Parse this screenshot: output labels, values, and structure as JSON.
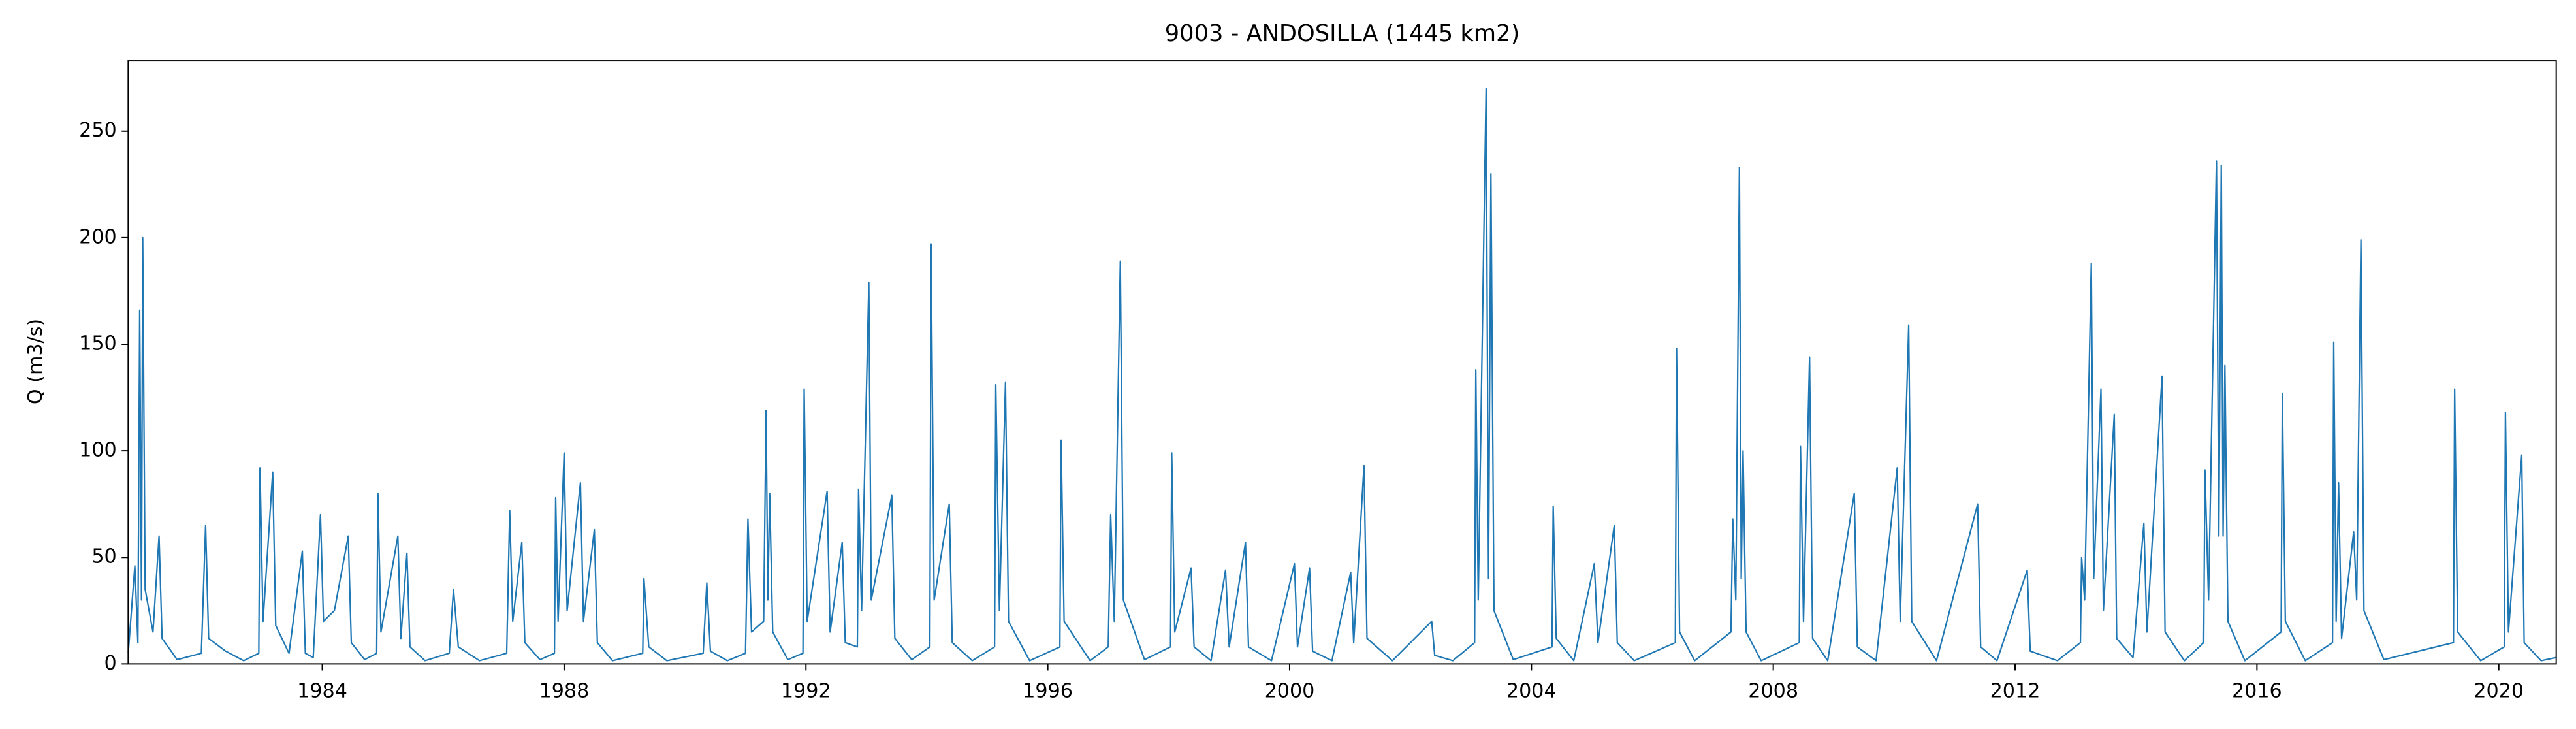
{
  "chart_data": {
    "type": "line",
    "title": "9003 - ANDOSILLA (1445 km2)",
    "y_label": "Q (m3/s)",
    "color": "#1f77b4",
    "xlim": [
      1980.79,
      2020.95
    ],
    "xticks": [
      1984,
      1988,
      1992,
      1996,
      2000,
      2004,
      2008,
      2012,
      2016,
      2020
    ],
    "ylim": [
      0,
      283
    ],
    "yticks": [
      0,
      50,
      100,
      150,
      200,
      250
    ],
    "grid": false,
    "x": [
      1980.79,
      1980.9,
      1980.95,
      1980.98,
      1981.01,
      1981.03,
      1981.07,
      1981.2,
      1981.3,
      1981.35,
      1981.6,
      1982.0,
      1982.07,
      1982.12,
      1982.4,
      1982.7,
      1982.95,
      1982.97,
      1983.02,
      1983.18,
      1983.23,
      1983.45,
      1983.67,
      1983.72,
      1983.85,
      1983.97,
      1984.02,
      1984.2,
      1984.43,
      1984.48,
      1984.7,
      1984.9,
      1984.92,
      1984.97,
      1985.25,
      1985.3,
      1985.4,
      1985.45,
      1985.7,
      1986.1,
      1986.17,
      1986.25,
      1986.6,
      1987.05,
      1987.1,
      1987.15,
      1987.3,
      1987.35,
      1987.6,
      1987.84,
      1987.86,
      1987.9,
      1988.0,
      1988.05,
      1988.27,
      1988.32,
      1988.5,
      1988.55,
      1988.8,
      1989.3,
      1989.32,
      1989.4,
      1989.7,
      1990.3,
      1990.36,
      1990.42,
      1990.7,
      1991.0,
      1991.04,
      1991.1,
      1991.3,
      1991.34,
      1991.37,
      1991.4,
      1991.45,
      1991.7,
      1991.95,
      1991.97,
      1992.02,
      1992.35,
      1992.4,
      1992.6,
      1992.65,
      1992.85,
      1992.87,
      1992.92,
      1993.04,
      1993.08,
      1993.42,
      1993.47,
      1993.75,
      1994.05,
      1994.07,
      1994.12,
      1994.37,
      1994.42,
      1994.75,
      1995.12,
      1995.14,
      1995.2,
      1995.3,
      1995.35,
      1995.7,
      1996.2,
      1996.22,
      1996.27,
      1996.7,
      1997.0,
      1997.04,
      1997.1,
      1997.2,
      1997.25,
      1997.6,
      1998.03,
      1998.05,
      1998.1,
      1998.37,
      1998.42,
      1998.7,
      1998.94,
      1999.0,
      1999.27,
      1999.32,
      1999.7,
      2000.08,
      2000.13,
      2000.33,
      2000.38,
      2000.7,
      2001.01,
      2001.06,
      2001.23,
      2001.28,
      2001.7,
      2002.35,
      2002.4,
      2002.7,
      2003.06,
      2003.08,
      2003.12,
      2003.25,
      2003.29,
      2003.33,
      2003.38,
      2003.7,
      2004.34,
      2004.36,
      2004.41,
      2004.7,
      2005.04,
      2005.1,
      2005.37,
      2005.42,
      2005.7,
      2006.38,
      2006.4,
      2006.45,
      2006.7,
      2007.3,
      2007.33,
      2007.38,
      2007.44,
      2007.47,
      2007.5,
      2007.55,
      2007.8,
      2008.43,
      2008.45,
      2008.5,
      2008.6,
      2008.65,
      2008.9,
      2009.34,
      2009.39,
      2009.7,
      2010.05,
      2010.1,
      2010.24,
      2010.29,
      2010.7,
      2011.38,
      2011.43,
      2011.7,
      2012.2,
      2012.25,
      2012.7,
      2013.08,
      2013.1,
      2013.15,
      2013.26,
      2013.3,
      2013.42,
      2013.46,
      2013.64,
      2013.68,
      2013.95,
      2014.13,
      2014.18,
      2014.43,
      2014.48,
      2014.8,
      2015.12,
      2015.14,
      2015.2,
      2015.33,
      2015.37,
      2015.41,
      2015.44,
      2015.47,
      2015.52,
      2015.8,
      2016.4,
      2016.42,
      2016.47,
      2016.8,
      2017.25,
      2017.27,
      2017.31,
      2017.35,
      2017.4,
      2017.6,
      2017.65,
      2017.72,
      2017.77,
      2018.1,
      2019.25,
      2019.27,
      2019.32,
      2019.7,
      2020.09,
      2020.11,
      2020.16,
      2020.38,
      2020.42,
      2020.7,
      2020.95
    ],
    "values": [
      5,
      46,
      10,
      166,
      30,
      200,
      35,
      15,
      60,
      12,
      2,
      5,
      65,
      12,
      6,
      1.5,
      5,
      92,
      20,
      90,
      18,
      5,
      53,
      5,
      3,
      70,
      20,
      25,
      60,
      10,
      2,
      5,
      80,
      15,
      60,
      12,
      52,
      8,
      1.5,
      5,
      35,
      8,
      1.5,
      5,
      72,
      20,
      57,
      10,
      2,
      5,
      78,
      20,
      99,
      25,
      85,
      20,
      63,
      10,
      1.5,
      5,
      40,
      8,
      1.5,
      5,
      38,
      6,
      1.5,
      5,
      68,
      15,
      20,
      119,
      30,
      80,
      15,
      2,
      5,
      129,
      20,
      81,
      15,
      57,
      10,
      8,
      82,
      25,
      179,
      30,
      79,
      12,
      2,
      8,
      197,
      30,
      75,
      10,
      1.5,
      8,
      131,
      25,
      132,
      20,
      1.5,
      8,
      105,
      20,
      1.5,
      8,
      70,
      20,
      189,
      30,
      2,
      8,
      99,
      15,
      45,
      8,
      1.5,
      44,
      8,
      57,
      8,
      1.5,
      47,
      8,
      45,
      6,
      1.5,
      43,
      10,
      93,
      12,
      1.5,
      20,
      4,
      1.5,
      10,
      138,
      30,
      270,
      40,
      230,
      25,
      2,
      8,
      74,
      12,
      1.5,
      47,
      10,
      65,
      10,
      1.5,
      10,
      148,
      15,
      1.5,
      15,
      68,
      30,
      233,
      40,
      100,
      15,
      1.5,
      10,
      102,
      20,
      144,
      12,
      1.5,
      80,
      8,
      1.5,
      92,
      20,
      159,
      20,
      1.5,
      75,
      8,
      1.5,
      44,
      6,
      1.5,
      10,
      50,
      30,
      188,
      40,
      129,
      25,
      117,
      12,
      3,
      66,
      15,
      135,
      15,
      1.5,
      10,
      91,
      30,
      236,
      60,
      234,
      60,
      140,
      20,
      1.5,
      15,
      127,
      20,
      1.5,
      10,
      151,
      20,
      85,
      12,
      62,
      30,
      199,
      25,
      2,
      10,
      129,
      15,
      1.5,
      8,
      118,
      15,
      98,
      10,
      1.5,
      3
    ]
  }
}
